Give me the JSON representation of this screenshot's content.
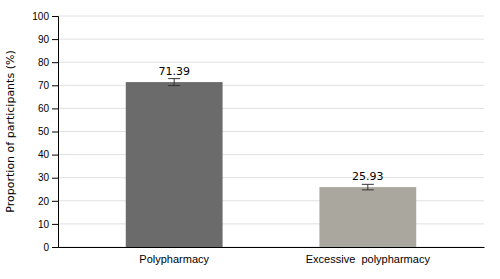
{
  "chart_data": {
    "type": "bar",
    "categories": [
      "Polypharmacy",
      "Excessive  polypharmacy"
    ],
    "values": [
      71.39,
      25.93
    ],
    "errors": [
      1.5,
      1.2
    ],
    "colors": [
      "#6b6b6b",
      "#aaa89e"
    ],
    "ylabel": "Proportion of participants (%)",
    "ylim": [
      0,
      100
    ],
    "yticks": [
      0,
      10,
      20,
      30,
      40,
      50,
      60,
      70,
      80,
      90,
      100
    ],
    "grid": true,
    "data_labels": true
  }
}
